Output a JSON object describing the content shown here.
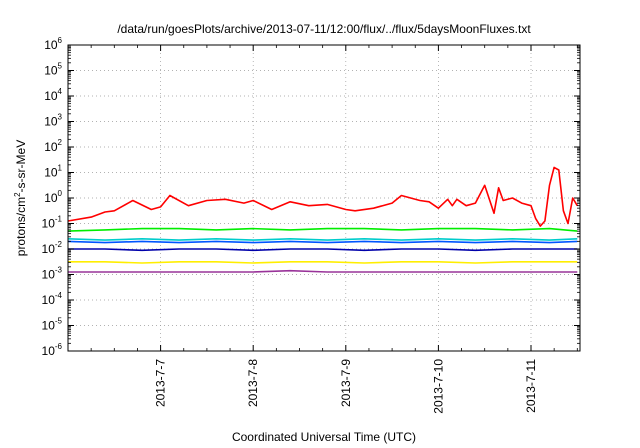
{
  "chart_data": {
    "type": "line",
    "title": "/data/run/goesPlots/archive/2013-07-11/12:00/flux/../flux/5daysMoonFluxes.txt",
    "xlabel": "Coordinated Universal Time (UTC)",
    "ylabel": {
      "pre": "protons/cm",
      "sup": "2",
      "post": "-s-sr-MeV"
    },
    "yscale": "log",
    "ylim": [
      -6,
      6
    ],
    "y_ticks": [
      {
        "base": "10",
        "exp": "6"
      },
      {
        "base": "10",
        "exp": "5"
      },
      {
        "base": "10",
        "exp": "4"
      },
      {
        "base": "10",
        "exp": "3"
      },
      {
        "base": "10",
        "exp": "2"
      },
      {
        "base": "10",
        "exp": "1"
      },
      {
        "base": "10",
        "exp": "0"
      },
      {
        "base": "10",
        "exp": "-1"
      },
      {
        "base": "10",
        "exp": "-2"
      },
      {
        "base": "10",
        "exp": "-3"
      },
      {
        "base": "10",
        "exp": "-4"
      },
      {
        "base": "10",
        "exp": "-5"
      },
      {
        "base": "10",
        "exp": "-6"
      }
    ],
    "xlim": [
      "2013-07-06 00:00",
      "2013-07-11 12:00"
    ],
    "x_ticks": [
      "2013-7-7",
      "2013-7-8",
      "2013-7-9",
      "2013-7-10",
      "2013-7-11"
    ],
    "grid": true,
    "series": [
      {
        "color": "#ff0000",
        "x": [
          0,
          0.25,
          0.4,
          0.5,
          0.7,
          0.9,
          1.0,
          1.1,
          1.3,
          1.5,
          1.7,
          1.9,
          2.0,
          2.2,
          2.4,
          2.6,
          2.8,
          3.0,
          3.1,
          3.3,
          3.5,
          3.6,
          3.8,
          3.9,
          4.0,
          4.1,
          4.15,
          4.2,
          4.3,
          4.4,
          4.5,
          4.6,
          4.65,
          4.7,
          4.8,
          4.9,
          5.0,
          5.05,
          5.1,
          5.15,
          5.2,
          5.25,
          5.3,
          5.35,
          5.4,
          5.45,
          5.5
        ],
        "y": [
          -0.9,
          -0.75,
          -0.55,
          -0.5,
          -0.1,
          -0.45,
          -0.35,
          0.1,
          -0.3,
          -0.1,
          -0.05,
          -0.2,
          -0.1,
          -0.45,
          -0.15,
          -0.3,
          -0.25,
          -0.45,
          -0.5,
          -0.4,
          -0.2,
          0.1,
          -0.1,
          -0.15,
          -0.4,
          -0.05,
          -0.3,
          -0.05,
          -0.3,
          -0.2,
          0.5,
          -0.6,
          0.4,
          -0.1,
          0.0,
          -0.2,
          -0.3,
          -0.8,
          -1.1,
          -0.9,
          0.5,
          1.2,
          1.1,
          -0.5,
          -1.0,
          0.0,
          -0.3
        ]
      },
      {
        "color": "#00ee00",
        "x": [
          0,
          0.4,
          0.8,
          1.2,
          1.6,
          2.0,
          2.4,
          2.8,
          3.2,
          3.6,
          4.0,
          4.4,
          4.8,
          5.2,
          5.5
        ],
        "y": [
          -1.3,
          -1.25,
          -1.2,
          -1.2,
          -1.25,
          -1.2,
          -1.25,
          -1.2,
          -1.2,
          -1.25,
          -1.2,
          -1.2,
          -1.25,
          -1.2,
          -1.3
        ]
      },
      {
        "color": "#00cccc",
        "x": [
          0,
          0.4,
          0.8,
          1.2,
          1.6,
          2.0,
          2.4,
          2.8,
          3.2,
          3.6,
          4.0,
          4.4,
          4.8,
          5.2,
          5.5
        ],
        "y": [
          -1.6,
          -1.65,
          -1.6,
          -1.65,
          -1.6,
          -1.65,
          -1.6,
          -1.65,
          -1.6,
          -1.65,
          -1.6,
          -1.65,
          -1.6,
          -1.65,
          -1.6
        ]
      },
      {
        "color": "#0055ff",
        "x": [
          0,
          0.4,
          0.8,
          1.2,
          1.6,
          2.0,
          2.4,
          2.8,
          3.2,
          3.6,
          4.0,
          4.4,
          4.8,
          5.2,
          5.5
        ],
        "y": [
          -1.7,
          -1.75,
          -1.7,
          -1.75,
          -1.7,
          -1.75,
          -1.7,
          -1.75,
          -1.7,
          -1.75,
          -1.7,
          -1.75,
          -1.7,
          -1.75,
          -1.7
        ]
      },
      {
        "color": "#0000aa",
        "x": [
          0,
          0.4,
          0.8,
          1.2,
          1.6,
          2.0,
          2.4,
          2.8,
          3.2,
          3.6,
          4.0,
          4.4,
          4.8,
          5.2,
          5.5
        ],
        "y": [
          -2.0,
          -2.0,
          -2.05,
          -2.0,
          -2.0,
          -2.05,
          -2.0,
          -2.0,
          -2.05,
          -2.0,
          -2.0,
          -2.05,
          -2.0,
          -2.0,
          -2.0
        ]
      },
      {
        "color": "#ffee00",
        "x": [
          0,
          0.4,
          0.8,
          1.2,
          1.6,
          2.0,
          2.4,
          2.8,
          3.2,
          3.6,
          4.0,
          4.4,
          4.8,
          5.2,
          5.5
        ],
        "y": [
          -2.5,
          -2.5,
          -2.55,
          -2.5,
          -2.5,
          -2.55,
          -2.5,
          -2.5,
          -2.55,
          -2.5,
          -2.5,
          -2.55,
          -2.5,
          -2.5,
          -2.5
        ]
      },
      {
        "color": "#993399",
        "x": [
          0,
          0.4,
          0.8,
          1.2,
          1.6,
          2.0,
          2.4,
          2.8,
          3.2,
          3.6,
          4.0,
          4.4,
          4.8,
          5.2,
          5.5
        ],
        "y": [
          -2.9,
          -2.9,
          -2.9,
          -2.9,
          -2.9,
          -2.9,
          -2.85,
          -2.9,
          -2.9,
          -2.9,
          -2.9,
          -2.9,
          -2.9,
          -2.9,
          -2.9
        ]
      }
    ]
  }
}
